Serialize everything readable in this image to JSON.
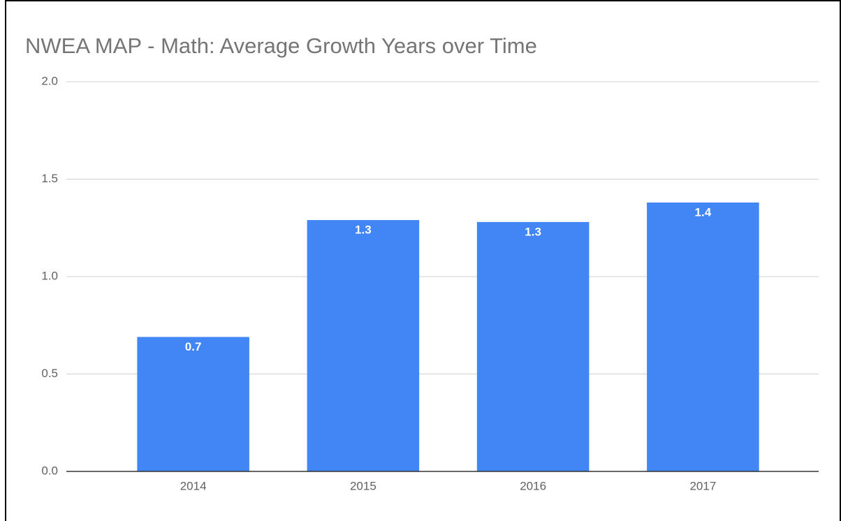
{
  "chart_data": {
    "type": "bar",
    "title": "NWEA MAP - Math: Average Growth Years over Time",
    "categories": [
      "2014",
      "2015",
      "2016",
      "2017"
    ],
    "values": [
      0.69,
      1.29,
      1.28,
      1.38
    ],
    "value_labels": [
      "0.7",
      "1.3",
      "1.3",
      "1.4"
    ],
    "color": "#4285f4",
    "ylim": [
      0,
      2
    ],
    "yticks": [
      {
        "value": 0,
        "label": "0.0"
      },
      0.5,
      {
        "value": 1,
        "label": "1.0"
      },
      1.5,
      {
        "value": 2,
        "label": "2.0"
      }
    ],
    "grid": true
  }
}
